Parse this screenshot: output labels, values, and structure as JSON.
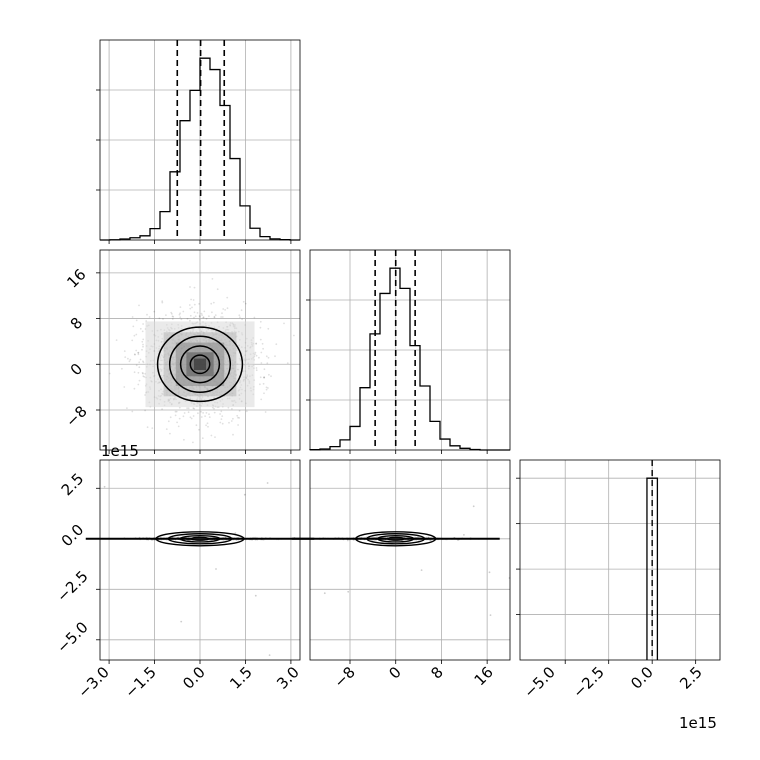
{
  "chart_data": {
    "type": "corner",
    "parameters": 3,
    "grid": true,
    "panels": [
      {
        "id": "hist-0",
        "type": "histogram",
        "parameter": 0,
        "xlim": [
          -3.3,
          3.3
        ],
        "bin_edges": [
          -3.3,
          -2.97,
          -2.64,
          -2.31,
          -1.98,
          -1.65,
          -1.32,
          -0.99,
          -0.66,
          -0.33,
          0.0,
          0.33,
          0.66,
          0.99,
          1.32,
          1.65,
          1.98,
          2.31,
          2.64,
          2.97,
          3.3
        ],
        "counts": [
          0,
          1,
          5,
          12,
          22,
          60,
          150,
          360,
          630,
          790,
          960,
          900,
          710,
          430,
          180,
          62,
          18,
          6,
          2,
          0
        ],
        "quantiles": [
          -0.75,
          0.02,
          0.8
        ],
        "xticks": [
          -3.0,
          -1.5,
          0.0,
          1.5,
          3.0
        ]
      },
      {
        "id": "hist-1",
        "type": "histogram",
        "parameter": 1,
        "xlim": [
          -15,
          20
        ],
        "bin_edges": [
          -15,
          -13.25,
          -11.5,
          -9.75,
          -8,
          -6.25,
          -4.5,
          -2.75,
          -1,
          0.75,
          2.5,
          4.25,
          6,
          7.75,
          9.5,
          11.25,
          13,
          14.75,
          16.5,
          18.25,
          20
        ],
        "counts": [
          2,
          6,
          20,
          60,
          140,
          370,
          690,
          930,
          1080,
          960,
          620,
          380,
          170,
          65,
          25,
          10,
          3,
          0,
          0,
          0
        ],
        "quantiles": [
          -3.6,
          0.0,
          3.4
        ],
        "xticks": [
          -8,
          0,
          8,
          16
        ]
      },
      {
        "id": "hist-2",
        "type": "histogram",
        "parameter": 2,
        "xlim": [
          -7.6,
          3.9
        ],
        "offset": "1e15",
        "bar_range": [
          -0.3,
          0.3
        ],
        "counts": [
          1
        ],
        "quantiles": [
          0.0
        ],
        "xticks": [
          -5.0,
          -2.5,
          0.0,
          2.5
        ]
      },
      {
        "id": "scatter-1-0",
        "type": "scatter_contour",
        "x_parameter": 0,
        "y_parameter": 1,
        "xlim": [
          -3.3,
          3.3
        ],
        "ylim": [
          -15,
          20
        ],
        "yticks": [
          -8,
          0,
          8,
          16
        ],
        "center": [
          0.0,
          0.0
        ],
        "contour_widths": [
          [
            1.4,
            6.5
          ],
          [
            1.0,
            4.9
          ],
          [
            0.64,
            3.2
          ],
          [
            0.32,
            1.6
          ]
        ]
      },
      {
        "id": "scatter-2-0",
        "type": "scatter_contour",
        "x_parameter": 0,
        "y_parameter": 2,
        "xlim": [
          -3.3,
          3.3
        ],
        "ylim": [
          -6.0,
          3.9
        ],
        "offset": "1e15",
        "yticks": [
          -5.0,
          -2.5,
          0.0,
          2.5
        ],
        "xticks": [
          -3.0,
          -1.5,
          0.0,
          1.5,
          3.0
        ],
        "center": [
          0.0,
          0.0
        ]
      },
      {
        "id": "scatter-2-1",
        "type": "scatter_contour",
        "x_parameter": 1,
        "y_parameter": 2,
        "xlim": [
          -15,
          20
        ],
        "ylim": [
          -6.0,
          3.9
        ],
        "xticks": [
          -8,
          0,
          8,
          16
        ],
        "center": [
          0.0,
          0.0
        ]
      }
    ],
    "tick_labels": {
      "x0": [
        "−3.0",
        "−1.5",
        "0.0",
        "1.5",
        "3.0"
      ],
      "x1": [
        "−8",
        "0",
        "8",
        "16"
      ],
      "x2": [
        "−5.0",
        "−2.5",
        "0.0",
        "2.5"
      ],
      "y1": [
        "16",
        "8",
        "0",
        "−8"
      ],
      "y2": [
        "2.5",
        "0.0",
        "−2.5",
        "−5.0"
      ]
    },
    "offset_labels": {
      "y2": "1e15",
      "x2": "1e15"
    }
  }
}
